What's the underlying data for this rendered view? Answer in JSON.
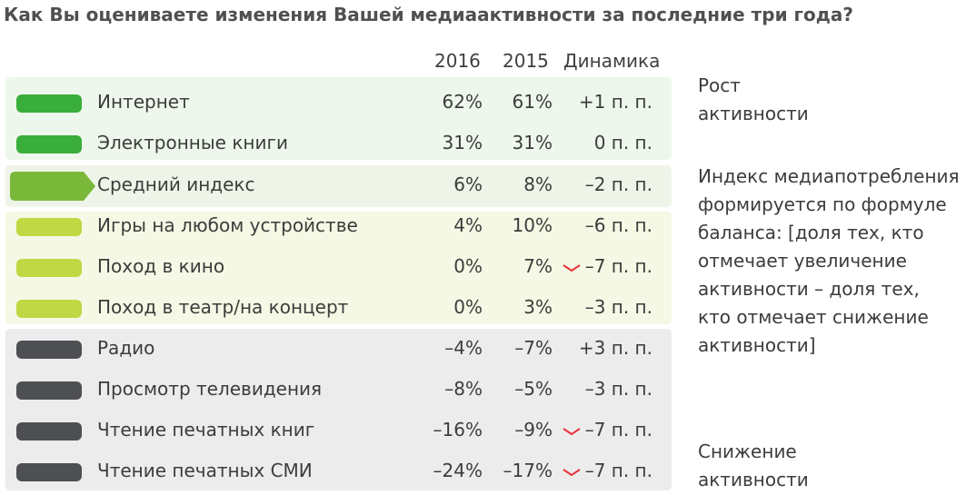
{
  "title": "Как Вы оцениваете изменения Вашей медиаактивности за последние три года?",
  "colors": {
    "growth_band": "#eef7ec",
    "middle_band": "#eef5e8",
    "low_band": "#f5f8e4",
    "decline_band": "#ececec",
    "dark_green": "#3aae3a",
    "mid_green": "#7ab83a",
    "light_green": "#bfd843",
    "dark_gray": "#4d4f53",
    "down_mark": "#e8333a"
  },
  "chart_data": {
    "type": "table",
    "title": "Как Вы оцениваете изменения Вашей медиаактивности за последние три года?",
    "columns": [
      "2016",
      "2015",
      "Динамика"
    ],
    "rows": [
      {
        "label": "Интернет",
        "v2016": "62%",
        "v2015": "61%",
        "dynamics": "+1 п. п.",
        "down_marker": false,
        "color": "#3aae3a",
        "group": "growth"
      },
      {
        "label": "Электронные книги",
        "v2016": "31%",
        "v2015": "31%",
        "dynamics": "0 п. п.",
        "down_marker": false,
        "color": "#3aae3a",
        "group": "growth"
      },
      {
        "label": "Средний индекс",
        "v2016": "6%",
        "v2015": "8%",
        "dynamics": "–2 п. п.",
        "down_marker": false,
        "color": "#7ab83a",
        "group": "index"
      },
      {
        "label": "Игры на любом устройстве",
        "v2016": "4%",
        "v2015": "10%",
        "dynamics": "–6 п. п.",
        "down_marker": false,
        "color": "#bfd843",
        "group": "low"
      },
      {
        "label": "Поход в кино",
        "v2016": "0%",
        "v2015": "7%",
        "dynamics": "–7 п. п.",
        "down_marker": true,
        "color": "#bfd843",
        "group": "low"
      },
      {
        "label": "Поход в театр/на концерт",
        "v2016": "0%",
        "v2015": "3%",
        "dynamics": "–3 п. п.",
        "down_marker": false,
        "color": "#bfd843",
        "group": "low"
      },
      {
        "label": "Радио",
        "v2016": "–4%",
        "v2015": "–7%",
        "dynamics": "+3 п. п.",
        "down_marker": false,
        "color": "#4d4f53",
        "group": "decline"
      },
      {
        "label": "Просмотр телевидения",
        "v2016": "–8%",
        "v2015": "–5%",
        "dynamics": "–3 п. п.",
        "down_marker": false,
        "color": "#4d4f53",
        "group": "decline"
      },
      {
        "label": "Чтение печатных книг",
        "v2016": "–16%",
        "v2015": "–9%",
        "dynamics": "–7 п. п.",
        "down_marker": true,
        "color": "#4d4f53",
        "group": "decline"
      },
      {
        "label": "Чтение печатных СМИ",
        "v2016": "–24%",
        "v2015": "–17%",
        "dynamics": "–7 п. п.",
        "down_marker": true,
        "color": "#4d4f53",
        "group": "decline"
      }
    ]
  },
  "notes": {
    "growth": [
      "Рост",
      "активности"
    ],
    "index": [
      "Индекс медиапотребления",
      "формируется по формуле",
      "баланса: [доля тех, кто",
      "отмечает увеличение",
      "активности – доля тех,",
      "кто отмечает снижение",
      "активности]"
    ],
    "decline": [
      "Снижение",
      "активности"
    ]
  }
}
